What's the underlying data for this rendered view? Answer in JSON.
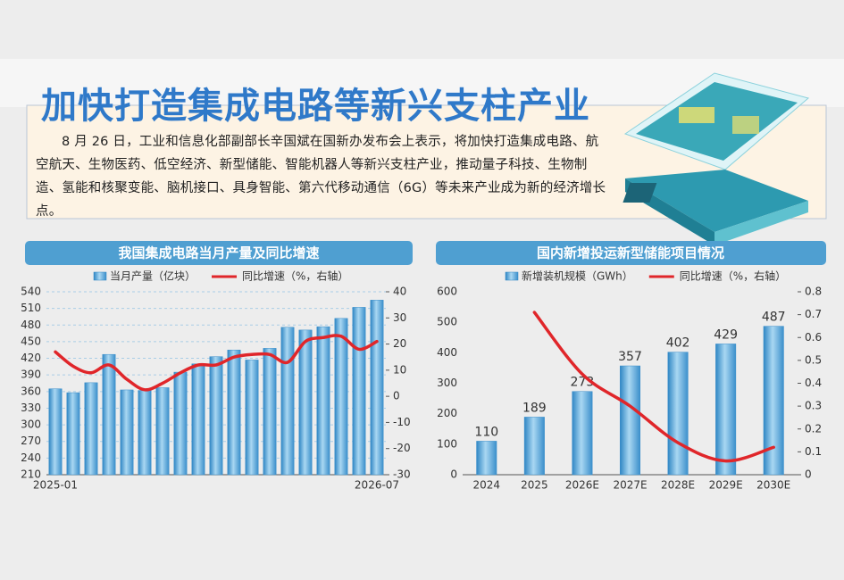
{
  "title": "加快打造集成电路等新兴支柱产业",
  "body": "8 月 26 日，工业和信息化部副部长辛国斌在国新办发布会上表示，将加快打造集成电路、航空航天、生物医药、低空经济、新型储能、智能机器人等新兴支柱产业，推动量子科技、生物制造、氢能和核聚变能、脑机接口、具身智能、第六代移动通信（6G）等未来产业成为新的经济增长点。",
  "chart_data": [
    {
      "type": "bar",
      "title": "我国集成电路当月产量及同比增速",
      "categories": [
        "2025-01",
        null,
        null,
        null,
        null,
        null,
        null,
        null,
        null,
        null,
        null,
        null,
        null,
        null,
        null,
        null,
        null,
        null,
        "2026-07"
      ],
      "series": [
        {
          "name": "当月产量（亿块）",
          "type": "bar",
          "color": "#5aa7d8",
          "values": [
            365,
            358,
            376,
            427,
            363,
            362,
            367,
            395,
            410,
            423,
            435,
            417,
            438,
            476,
            471,
            477,
            492,
            512,
            525
          ]
        },
        {
          "name": "同比增速（%，右轴）",
          "type": "line",
          "axis": "y2",
          "color": "#e0262a",
          "values": [
            17,
            11.5,
            9,
            12,
            6.5,
            2.5,
            5,
            9,
            12,
            12,
            15,
            16,
            16,
            13,
            21,
            22.5,
            23,
            18,
            21
          ]
        }
      ],
      "ylim": [
        210,
        540
      ],
      "yticks": [
        210,
        240,
        270,
        300,
        330,
        360,
        390,
        420,
        450,
        480,
        510,
        540
      ],
      "y2lim": [
        -30,
        40
      ],
      "y2ticks": [
        -30,
        -20,
        -10,
        0,
        10,
        20,
        30,
        40
      ],
      "grid": true
    },
    {
      "type": "bar",
      "title": "国内新增投运新型储能项目情况",
      "categories": [
        "2024",
        "2025",
        "2026E",
        "2027E",
        "2028E",
        "2029E",
        "2030E"
      ],
      "series": [
        {
          "name": "新增装机规模（GWh）",
          "type": "bar",
          "color": "#5aa7d8",
          "values": [
            110,
            189,
            273,
            357,
            402,
            429,
            487
          ],
          "show_values": true
        },
        {
          "name": "同比增速（%，右轴）",
          "type": "line",
          "axis": "y2",
          "color": "#e0262a",
          "values": [
            null,
            0.71,
            0.44,
            0.3,
            0.14,
            0.06,
            0.12
          ]
        }
      ],
      "ylim": [
        0,
        600
      ],
      "yticks": [
        0,
        100,
        200,
        300,
        400,
        500,
        600
      ],
      "y2lim": [
        0,
        0.8
      ],
      "y2ticks": [
        0,
        0.1,
        0.2,
        0.3,
        0.4,
        0.5,
        0.6,
        0.7,
        0.8
      ],
      "grid": false
    }
  ]
}
